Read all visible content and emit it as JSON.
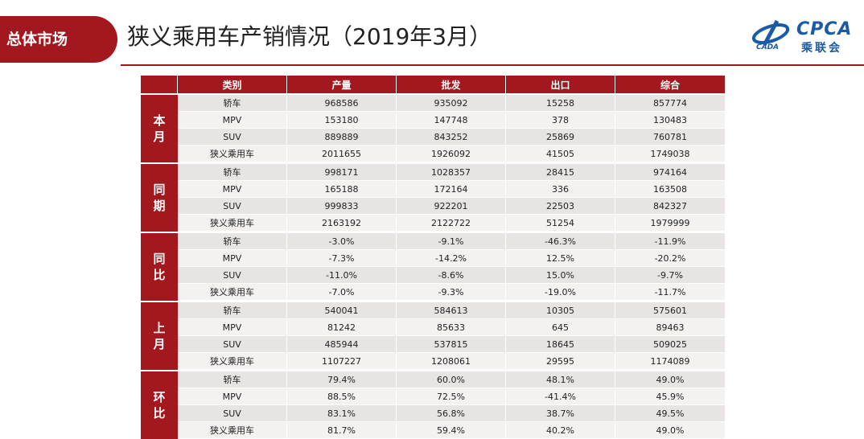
{
  "header": {
    "section_tag": "总体市场",
    "title": "狭义乘用车产销情况（2019年3月）",
    "logo": {
      "text": "CPCA",
      "sub": "乘联会",
      "small": "CADA"
    }
  },
  "table": {
    "columns": [
      "类别",
      "产量",
      "批发",
      "出口",
      "综合"
    ],
    "groups": [
      {
        "label": [
          "本",
          "月"
        ],
        "rows": [
          [
            "轿车",
            "968586",
            "935092",
            "15258",
            "857774"
          ],
          [
            "MPV",
            "153180",
            "147748",
            "378",
            "130483"
          ],
          [
            "SUV",
            "889889",
            "843252",
            "25869",
            "760781"
          ],
          [
            "狭义乘用车",
            "2011655",
            "1926092",
            "41505",
            "1749038"
          ]
        ]
      },
      {
        "label": [
          "同",
          "期"
        ],
        "rows": [
          [
            "轿车",
            "998171",
            "1028357",
            "28415",
            "974164"
          ],
          [
            "MPV",
            "165188",
            "172164",
            "336",
            "163508"
          ],
          [
            "SUV",
            "999833",
            "922201",
            "22503",
            "842327"
          ],
          [
            "狭义乘用车",
            "2163192",
            "2122722",
            "51254",
            "1979999"
          ]
        ]
      },
      {
        "label": [
          "同",
          "比"
        ],
        "rows": [
          [
            "轿车",
            "-3.0%",
            "-9.1%",
            "-46.3%",
            "-11.9%"
          ],
          [
            "MPV",
            "-7.3%",
            "-14.2%",
            "12.5%",
            "-20.2%"
          ],
          [
            "SUV",
            "-11.0%",
            "-8.6%",
            "15.0%",
            "-9.7%"
          ],
          [
            "狭义乘用车",
            "-7.0%",
            "-9.3%",
            "-19.0%",
            "-11.7%"
          ]
        ]
      },
      {
        "label": [
          "上",
          "月"
        ],
        "rows": [
          [
            "轿车",
            "540041",
            "584613",
            "10305",
            "575601"
          ],
          [
            "MPV",
            "81242",
            "85633",
            "645",
            "89463"
          ],
          [
            "SUV",
            "485944",
            "537815",
            "18645",
            "509025"
          ],
          [
            "狭义乘用车",
            "1107227",
            "1208061",
            "29595",
            "1174089"
          ]
        ]
      },
      {
        "label": [
          "环",
          "比"
        ],
        "rows": [
          [
            "轿车",
            "79.4%",
            "60.0%",
            "48.1%",
            "49.0%"
          ],
          [
            "MPV",
            "88.5%",
            "72.5%",
            "-41.4%",
            "45.9%"
          ],
          [
            "SUV",
            "83.1%",
            "56.8%",
            "38.7%",
            "49.5%"
          ],
          [
            "狭义乘用车",
            "81.7%",
            "59.4%",
            "40.2%",
            "49.0%"
          ]
        ]
      }
    ]
  },
  "colors": {
    "accent": "#a3171f",
    "row_odd": "#e9e4e4",
    "row_even": "#f4f1f1",
    "logo_blue": "#1a5aa6"
  }
}
